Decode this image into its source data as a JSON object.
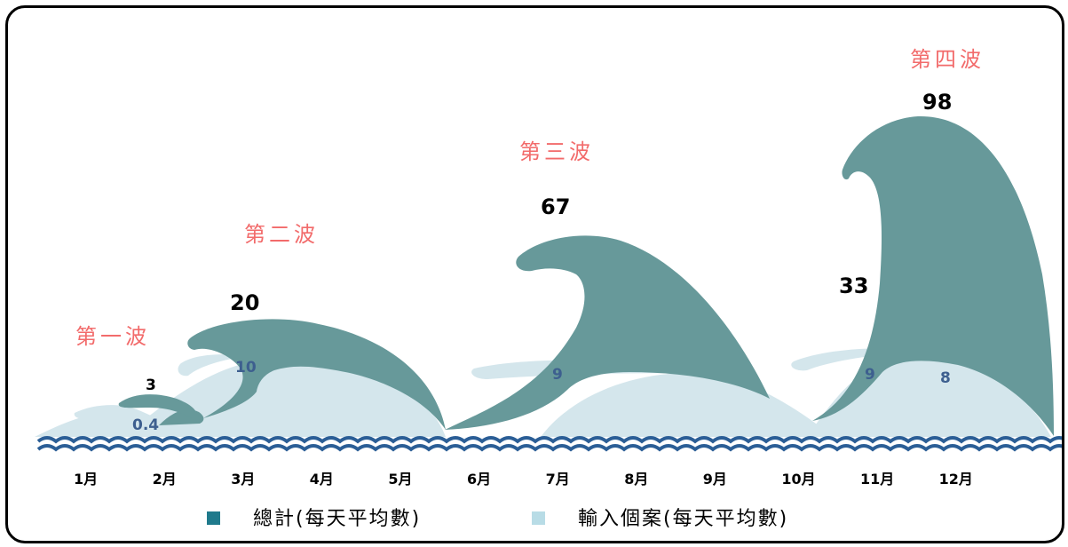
{
  "colors": {
    "total": "#67999a",
    "import": "#d4e6ec",
    "sea": "#2b5e96",
    "wave_label": "#f26b6b",
    "import_label": "#3d5f8f"
  },
  "chart_data": {
    "type": "area",
    "categories": [
      "1月",
      "2月",
      "3月",
      "4月",
      "5月",
      "6月",
      "7月",
      "8月",
      "9月",
      "10月",
      "11月",
      "12月"
    ],
    "wave_labels": [
      "第一波",
      "第二波",
      "第三波",
      "第四波"
    ],
    "series": [
      {
        "name": "總計(每天平均數)",
        "peaks": [
          {
            "wave": "第一波",
            "value": 3,
            "label": "3"
          },
          {
            "wave": "第二波",
            "value": 20,
            "label": "20"
          },
          {
            "wave": "第三波",
            "value": 67,
            "label": "67"
          },
          {
            "wave": "第四波",
            "value": 33,
            "label": "33"
          },
          {
            "wave": "第四波",
            "value": 98,
            "label": "98"
          }
        ]
      },
      {
        "name": "輸入個案(每天平均數)",
        "peaks": [
          {
            "wave": "第一波",
            "value": 0.4,
            "label": "0.4"
          },
          {
            "wave": "第二波",
            "value": 10,
            "label": "10"
          },
          {
            "wave": "第三波",
            "value": 9,
            "label": "9"
          },
          {
            "wave": "第四波",
            "value": 9,
            "label": "9"
          },
          {
            "wave": "第四波",
            "value": 8,
            "label": "8"
          }
        ]
      }
    ],
    "legend": {
      "position": "bottom",
      "total_label": "總計(每天平均數)",
      "import_label": "輸入個案(每天平均數)"
    }
  }
}
